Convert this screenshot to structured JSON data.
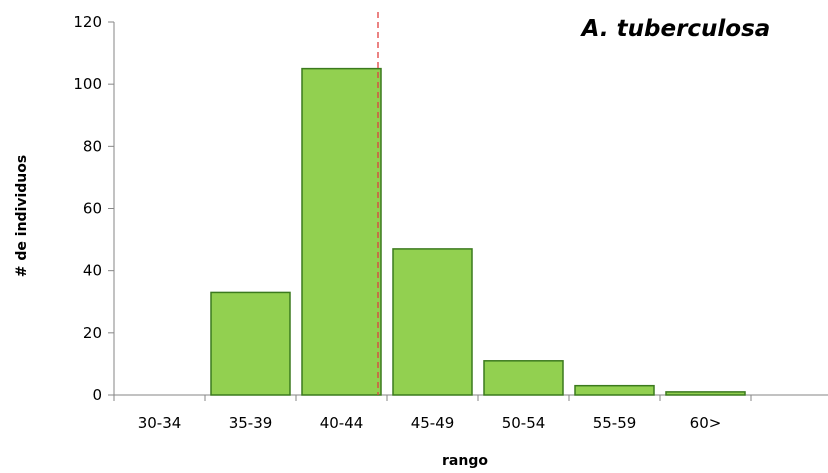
{
  "chart_data": {
    "type": "bar",
    "title": "A. tuberculosa",
    "xlabel": "rango",
    "ylabel": "# de individuos",
    "categories": [
      "30-34",
      "35-39",
      "40-44",
      "45-49",
      "50-54",
      "55-59",
      "60>"
    ],
    "values": [
      0,
      33,
      105,
      47,
      11,
      3,
      1
    ],
    "ylim": [
      0,
      120
    ],
    "yticks": [
      0,
      20,
      40,
      60,
      80,
      100,
      120
    ],
    "grid": false,
    "legend": "none",
    "bar_color": "#92d050",
    "bar_edge_color": "#3b7a1e",
    "reference_line": {
      "style": "dashed",
      "color": "#e04040",
      "position": "between 40-44 and 45-49"
    }
  }
}
